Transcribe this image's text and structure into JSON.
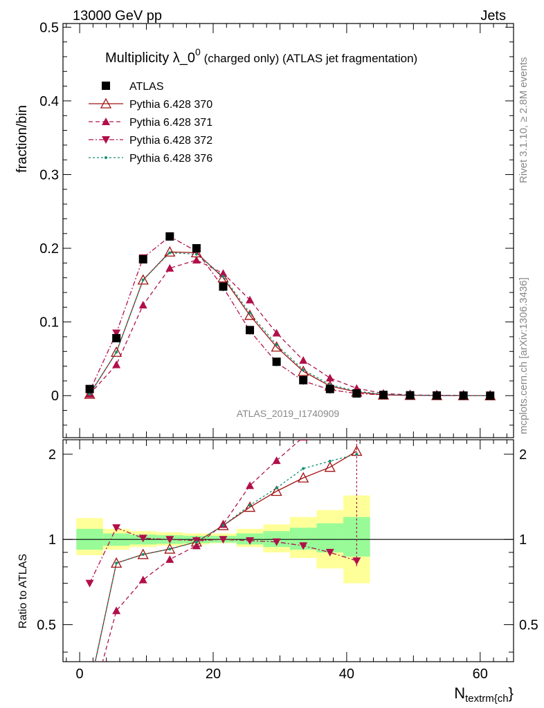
{
  "header": {
    "left": "13000 GeV pp",
    "right": "Jets"
  },
  "side_labels": {
    "rivet": "Rivet 3.1.10, ≥ 2.8M events",
    "mcplots": "mcplots.cern.ch [arXiv:1306.3436]"
  },
  "chart_data": {
    "type": "scatter",
    "title": "Multiplicity λ_0",
    "title_superscript": "0",
    "title_suffix": " (charged only) (ATLAS jet fragmentation)",
    "ylabel": "fraction/bin",
    "xlabel": "N",
    "xlabel_subscript": "textrm{ch",
    "xlabel_suffix": "}",
    "ratio_ylabel": "Ratio to ATLAS",
    "watermark": "ATLAS_2019_I1740909",
    "xlim": [
      -2.5,
      65
    ],
    "ylim": [
      -0.057,
      0.505
    ],
    "ratio_ylim": [
      0.37,
      2.25
    ],
    "x_ticks": [
      0,
      20,
      40,
      60
    ],
    "y_ticks": [
      0,
      0.1,
      0.2,
      0.3,
      0.4,
      0.5
    ],
    "y_tick_labels": [
      "0",
      "0.1",
      "0.2",
      "0.3",
      "0.4",
      "0.5"
    ],
    "ratio_ticks": [
      0.5,
      1,
      2
    ],
    "ratio_tick_labels": [
      "0.5",
      "1",
      "2"
    ],
    "x": [
      1.5,
      5.5,
      9.5,
      13.5,
      17.5,
      21.5,
      25.5,
      29.5,
      33.5,
      37.5,
      41.5,
      45.5,
      49.5,
      53.5,
      57.5,
      61.5
    ],
    "series": [
      {
        "name": "ATLAS",
        "color": "#000000",
        "marker": "square",
        "style": "none",
        "values": [
          0.009,
          0.078,
          0.185,
          0.216,
          0.2,
          0.148,
          0.089,
          0.046,
          0.021,
          0.009,
          0.003,
          0.001,
          0.0005,
          0.0002,
          0.0001,
          0.0
        ]
      },
      {
        "name": "Pythia 6.428 370",
        "color": "#a01010",
        "marker": "triangle-open",
        "style": "solid",
        "values": [
          0.002,
          0.059,
          0.157,
          0.195,
          0.194,
          0.16,
          0.109,
          0.066,
          0.033,
          0.013,
          0.005,
          0.001,
          0.0005,
          0.0002,
          0.0001,
          0.0
        ],
        "ratio": [
          0.3,
          0.825,
          0.885,
          0.925,
          0.98,
          1.12,
          1.3,
          1.48,
          1.65,
          1.8,
          2.05
        ]
      },
      {
        "name": "Pythia 6.428 371",
        "color": "#b0104a",
        "marker": "triangle-up",
        "style": "dashed",
        "values": [
          0.002,
          0.042,
          0.123,
          0.173,
          0.184,
          0.166,
          0.13,
          0.085,
          0.048,
          0.024,
          0.01,
          0.003,
          0.001,
          0.0005,
          0.0002,
          0.0
        ],
        "ratio": [
          0.25,
          0.56,
          0.72,
          0.85,
          0.95,
          1.13,
          1.55,
          1.9,
          2.3,
          2.7,
          3.0
        ]
      },
      {
        "name": "Pythia 6.428 372",
        "color": "#b0104a",
        "marker": "triangle-down",
        "style": "dashdot",
        "values": [
          0.006,
          0.085,
          0.187,
          0.216,
          0.196,
          0.147,
          0.088,
          0.045,
          0.02,
          0.008,
          0.003,
          0.001,
          0.0004,
          0.0001,
          0.0,
          0.0
        ],
        "ratio": [
          0.7,
          1.1,
          1.01,
          1.0,
          0.99,
          1.0,
          0.99,
          0.98,
          0.95,
          0.9,
          0.84
        ]
      },
      {
        "name": "Pythia 6.428 376",
        "color": "#109070",
        "marker": "dot",
        "style": "dotted",
        "values": [
          0.002,
          0.059,
          0.157,
          0.194,
          0.192,
          0.162,
          0.112,
          0.069,
          0.035,
          0.015,
          0.006,
          0.002,
          0.0006,
          0.0002,
          0.0001,
          0.0
        ],
        "ratio": [
          0.3,
          0.825,
          0.885,
          0.925,
          0.98,
          1.12,
          1.32,
          1.52,
          1.78,
          1.89,
          2.0
        ]
      }
    ],
    "uncertainty_bands": {
      "x_low": [
        -0.5,
        3.5,
        7.5,
        11.5,
        15.5,
        19.5,
        23.5,
        27.5,
        31.5,
        35.5,
        39.5
      ],
      "x_high": [
        3.5,
        7.5,
        11.5,
        15.5,
        19.5,
        23.5,
        27.5,
        31.5,
        35.5,
        39.5,
        43.5
      ],
      "stat_low": [
        0.92,
        0.95,
        0.96,
        0.965,
        0.97,
        0.975,
        0.96,
        0.94,
        0.92,
        0.9,
        0.87
      ],
      "stat_high": [
        1.09,
        1.05,
        1.04,
        1.035,
        1.03,
        1.03,
        1.05,
        1.07,
        1.1,
        1.14,
        1.2
      ],
      "total_low": [
        0.88,
        0.92,
        0.94,
        0.95,
        0.96,
        0.97,
        0.94,
        0.9,
        0.86,
        0.79,
        0.7
      ],
      "total_high": [
        1.19,
        1.09,
        1.07,
        1.06,
        1.05,
        1.05,
        1.09,
        1.13,
        1.2,
        1.27,
        1.43
      ],
      "stat_color": "#98fb98",
      "total_color": "#ffff99"
    }
  }
}
